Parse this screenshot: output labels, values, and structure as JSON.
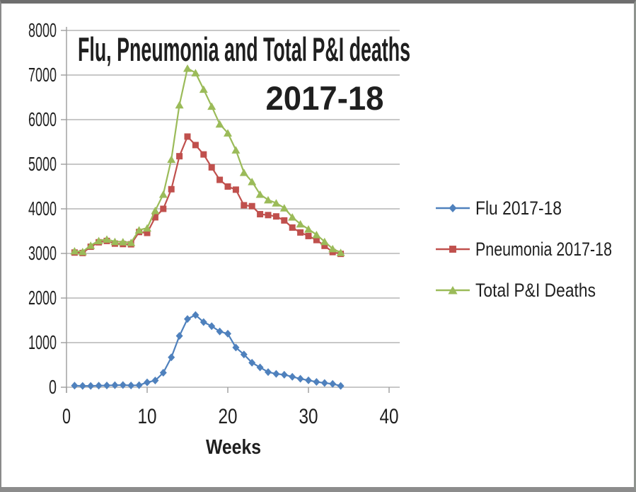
{
  "chart_data": {
    "type": "line",
    "title": "Flu, Pneumonia and Total P&I deaths",
    "title_line2": "2017-18",
    "xlabel": "Weeks",
    "ylabel": "",
    "xlim": [
      0,
      40
    ],
    "ylim": [
      0,
      8000
    ],
    "x_ticks": [
      0,
      10,
      20,
      30,
      40
    ],
    "y_ticks": [
      0,
      1000,
      2000,
      3000,
      4000,
      5000,
      6000,
      7000,
      8000
    ],
    "grid": "horizontal",
    "legend_position": "right-middle",
    "gridline_color": "#a6a6a6",
    "axis_color": "#9d9d9d",
    "x": [
      1,
      2,
      3,
      4,
      5,
      6,
      7,
      8,
      9,
      10,
      11,
      12,
      13,
      14,
      15,
      16,
      17,
      18,
      19,
      20,
      21,
      22,
      23,
      24,
      25,
      26,
      27,
      28,
      29,
      30,
      31,
      32,
      33,
      34
    ],
    "series": [
      {
        "name": "Flu 2017-18",
        "color": "#4F81BD",
        "marker": "diamond",
        "values": [
          35,
          30,
          30,
          35,
          40,
          45,
          50,
          40,
          45,
          110,
          150,
          325,
          670,
          1150,
          1530,
          1620,
          1460,
          1370,
          1250,
          1200,
          890,
          735,
          550,
          445,
          340,
          300,
          280,
          235,
          190,
          155,
          120,
          95,
          75,
          30
        ]
      },
      {
        "name": "Pneumonia 2017-18",
        "color": "#C0504D",
        "marker": "square",
        "values": [
          3020,
          3010,
          3150,
          3250,
          3280,
          3220,
          3210,
          3205,
          3480,
          3460,
          3810,
          4000,
          4440,
          5180,
          5620,
          5430,
          5220,
          4930,
          4650,
          4500,
          4430,
          4080,
          4060,
          3880,
          3860,
          3830,
          3740,
          3580,
          3470,
          3390,
          3300,
          3170,
          3030,
          2990
        ]
      },
      {
        "name": "Total P&I Deaths",
        "color": "#9BBB59",
        "marker": "triangle",
        "values": [
          3055,
          3040,
          3180,
          3285,
          3320,
          3265,
          3260,
          3245,
          3525,
          3570,
          3960,
          4325,
          5110,
          6330,
          7150,
          7050,
          6680,
          6300,
          5900,
          5700,
          5320,
          4815,
          4610,
          4325,
          4200,
          4130,
          4020,
          3815,
          3660,
          3545,
          3420,
          3265,
          3105,
          3020
        ]
      }
    ]
  }
}
